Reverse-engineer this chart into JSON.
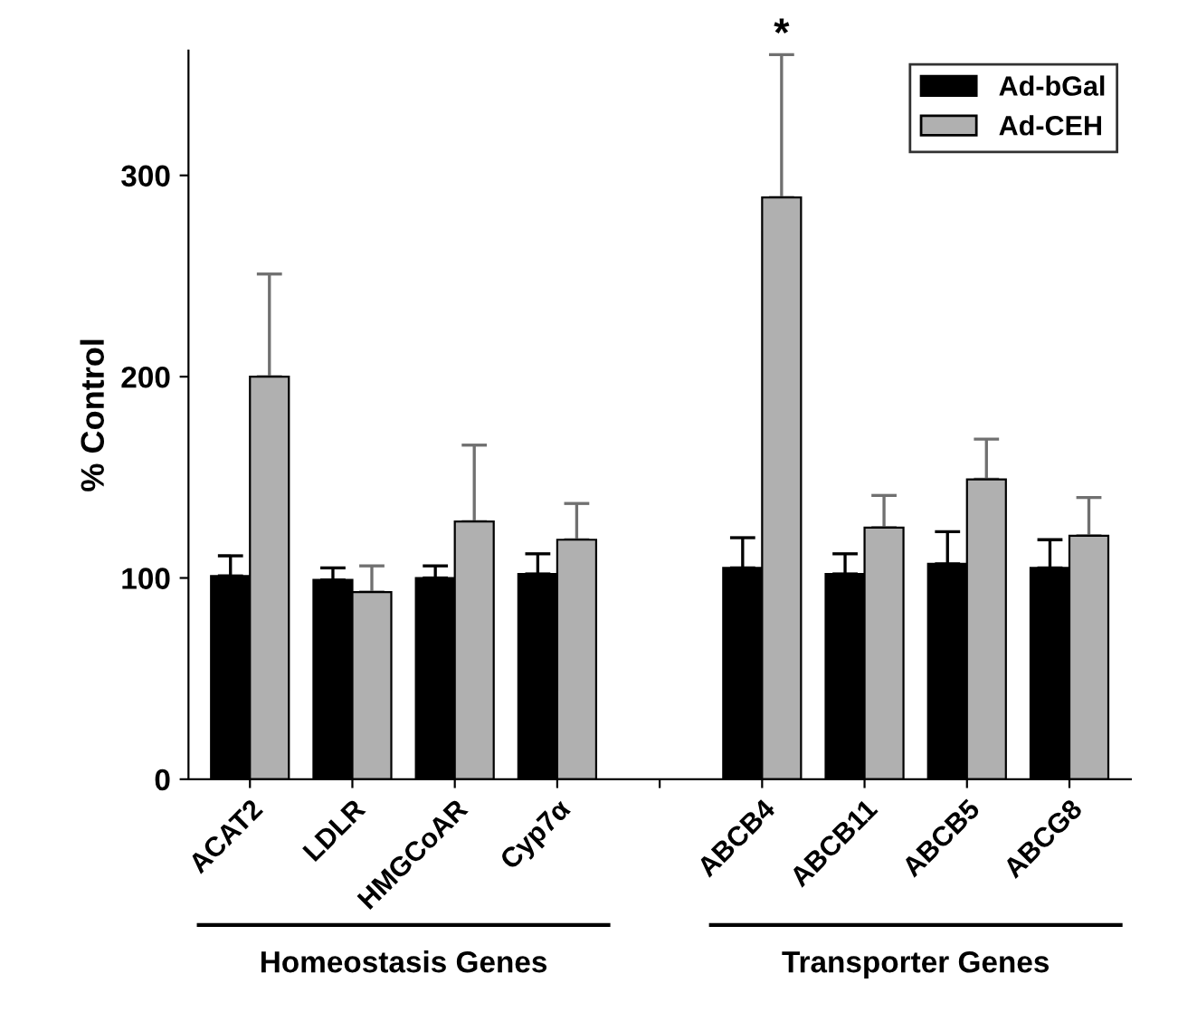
{
  "chart_data": {
    "type": "bar",
    "ylabel": "% Control",
    "categories": [
      "ACAT2",
      "LDLR",
      "HMGCoAR",
      "Cyp7α",
      null,
      "ABCB4",
      "ABCB11",
      "ABCB5",
      "ABCG8"
    ],
    "series": [
      {
        "name": "Ad-bGal",
        "color": "#000000",
        "values": [
          101,
          99,
          100,
          102,
          null,
          105,
          102,
          107,
          105
        ],
        "errors": [
          [
            101,
            111
          ],
          [
            99,
            105
          ],
          [
            100,
            106
          ],
          [
            102,
            112
          ],
          null,
          [
            105,
            120
          ],
          [
            102,
            112
          ],
          [
            107,
            123
          ],
          [
            105,
            119
          ]
        ]
      },
      {
        "name": "Ad-CEH",
        "color": "#b0b0b0",
        "values": [
          200,
          93,
          128,
          119,
          null,
          289,
          125,
          149,
          121
        ],
        "errors": [
          [
            200,
            251
          ],
          [
            93,
            106
          ],
          [
            128,
            166
          ],
          [
            119,
            137
          ],
          null,
          [
            289,
            360
          ],
          [
            125,
            141
          ],
          [
            149,
            169
          ],
          [
            121,
            140
          ]
        ]
      }
    ],
    "ylim": [
      0,
      362
    ],
    "yticks": [
      0,
      100,
      200,
      300
    ],
    "grid": false,
    "legend": "top right",
    "annotations": [
      {
        "text": "*",
        "x": "ABCB4",
        "y": 360
      },
      "Homeostasis Genes",
      "Transporter Genes"
    ]
  }
}
